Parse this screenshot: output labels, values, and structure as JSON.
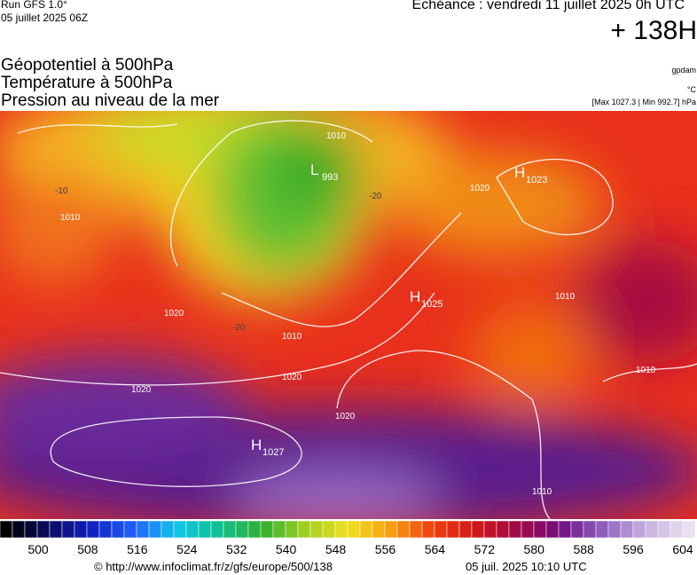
{
  "header": {
    "run": "Run GFS 1.0°",
    "date": "05 juillet 2025 06Z",
    "echeance": "Echéance : vendredi 11 juillet 2025 0h UTC",
    "lead": "+ 138H"
  },
  "titles": [
    "Géopotentiel à 500hPa",
    "Température à 500hPa",
    "Pression au niveau de la mer"
  ],
  "side": {
    "source": "gpdam",
    "unit": "°C",
    "range": "[Max 1027.3 | Min 992.7] hPa"
  },
  "map": {
    "centers": [
      {
        "letter": "L",
        "value": "993"
      },
      {
        "letter": "H",
        "value": "1023"
      },
      {
        "letter": "H",
        "value": "1025"
      },
      {
        "letter": "H",
        "value": "1027"
      }
    ],
    "isobar_labels": [
      "1010",
      "1020",
      "1020",
      "1010",
      "1020",
      "1020",
      "1010",
      "1010",
      "1010",
      "1020",
      "1010",
      "-20",
      "-10",
      "-20"
    ]
  },
  "colorbar": {
    "ticks": [
      500,
      508,
      516,
      524,
      532,
      540,
      548,
      556,
      564,
      572,
      580,
      588,
      596,
      604
    ]
  },
  "footer": {
    "url": "© http://www.infoclimat.fr/z/gfs/europe/500/138",
    "generated": "05 juil. 2025 10:10 UTC"
  }
}
